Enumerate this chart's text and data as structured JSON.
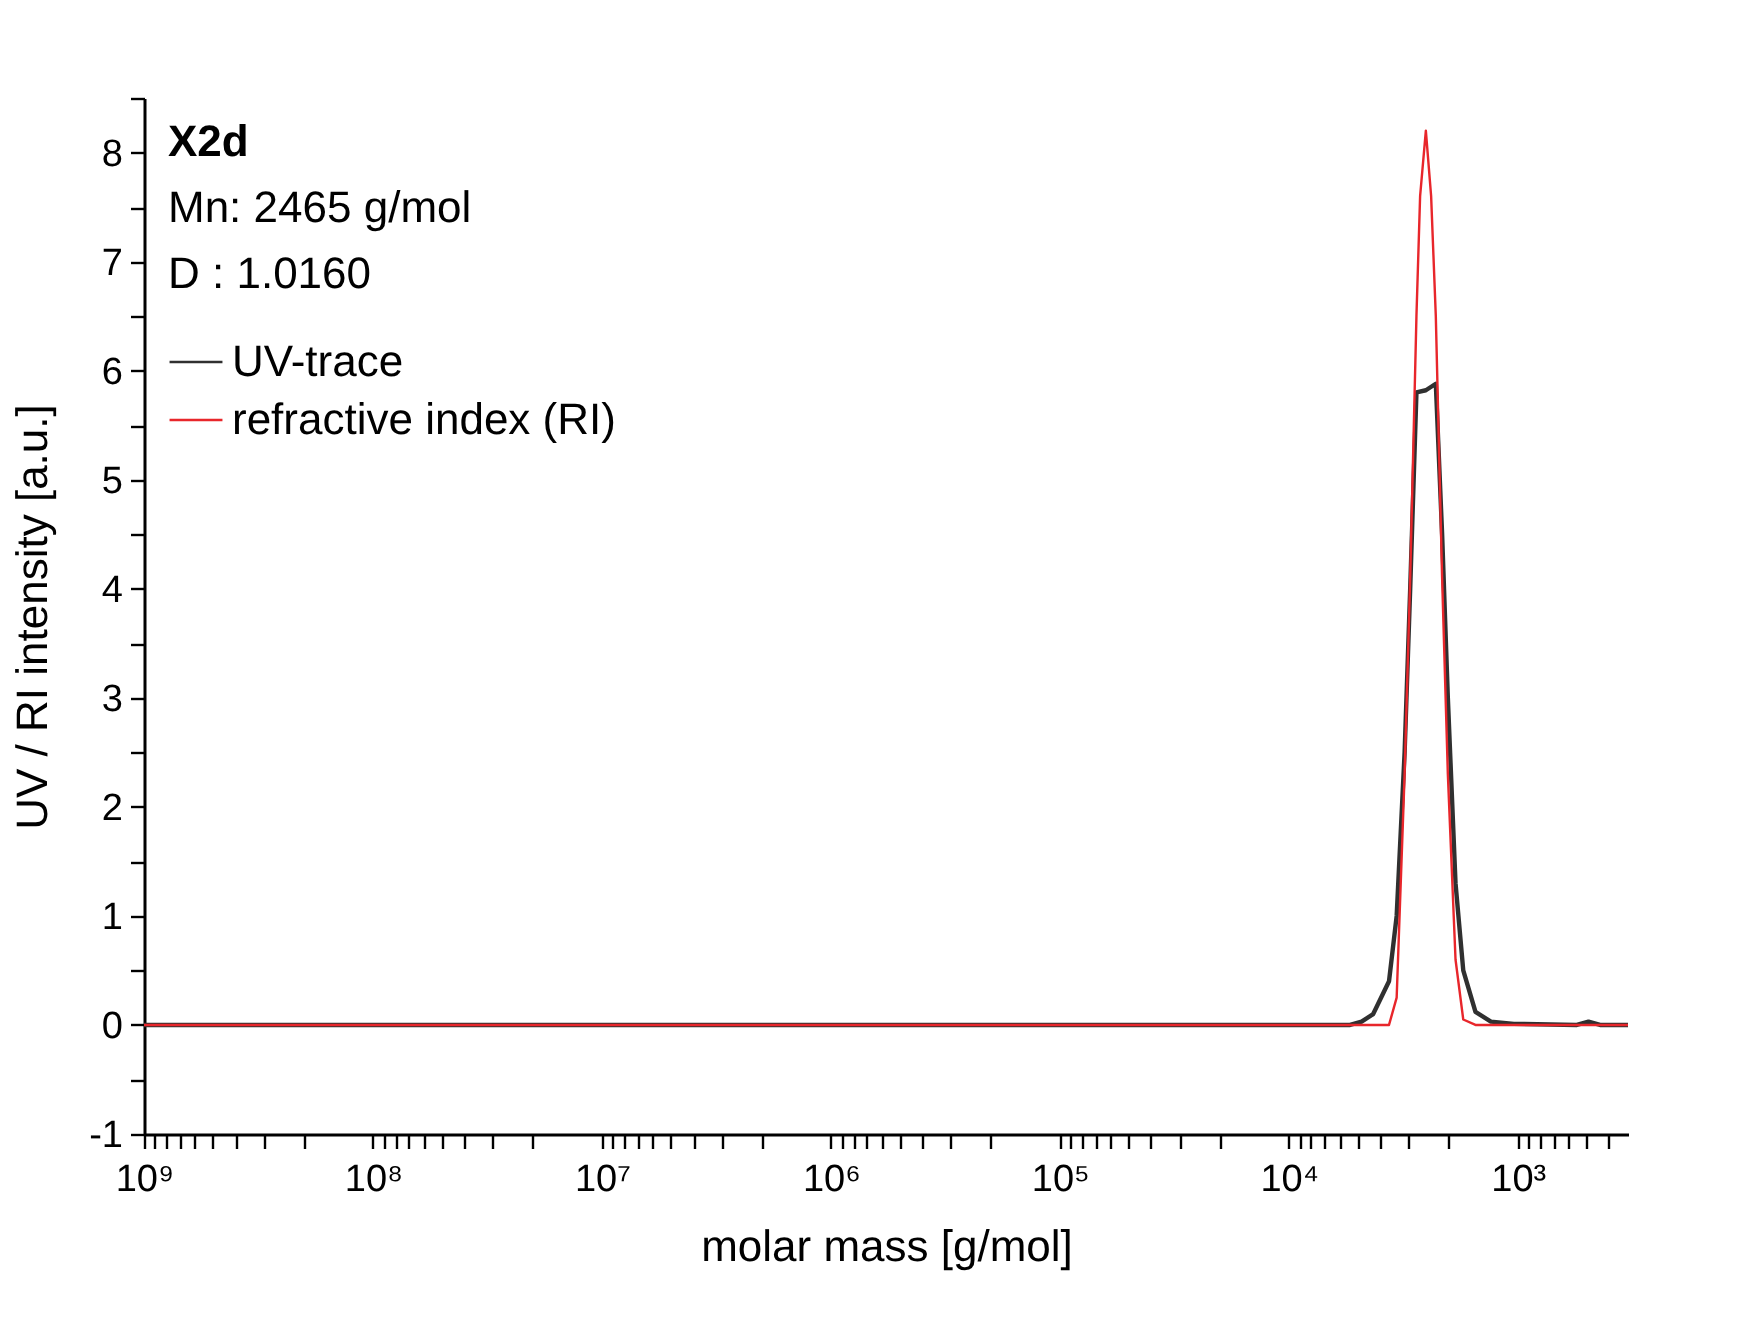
{
  "chart_data": {
    "type": "line",
    "xlabel": "molar mass [g/mol]",
    "ylabel": "UV / RI intensity [a.u.]",
    "annotations": [
      "X2d",
      "Mn: 2465 g/mol",
      "D  : 1.0160"
    ],
    "series": [
      {
        "name": "UV-trace",
        "color": "#303030",
        "x": [
          1000000000,
          5400,
          4810,
          4280,
          3650,
          3380,
          3120,
          2950,
          2770,
          2520,
          2280,
          2140,
          2020,
          1870,
          1730,
          1530,
          1310,
          1040,
          552,
          491,
          437,
          330
        ],
        "values": [
          0,
          0,
          0.03,
          0.1,
          0.4,
          1.0,
          2.5,
          4.0,
          5.8,
          5.82,
          5.88,
          4.5,
          3.0,
          1.3,
          0.5,
          0.12,
          0.03,
          0.01,
          0,
          0.03,
          0,
          0
        ]
      },
      {
        "name": "refractive index (RI)",
        "color": "#e8262b",
        "x": [
          1000000000,
          3650,
          3380,
          3120,
          2950,
          2770,
          2670,
          2520,
          2390,
          2280,
          2140,
          2020,
          1870,
          1730,
          1530,
          330
        ],
        "values": [
          0,
          0,
          0.25,
          2.3,
          4.1,
          6.5,
          7.6,
          8.2,
          7.6,
          6.5,
          4.1,
          2.3,
          0.6,
          0.05,
          0,
          0
        ]
      }
    ],
    "log": "x",
    "xlim": [
      1000000000,
      330
    ],
    "ylim": [
      -1,
      8.5
    ],
    "xticks": [
      {
        "value": 1000000000,
        "label": "10⁹"
      },
      {
        "value": 100000000,
        "label": "10⁸"
      },
      {
        "value": 10000000,
        "label": "10⁷"
      },
      {
        "value": 1000000,
        "label": "10⁶"
      },
      {
        "value": 100000,
        "label": "10⁵"
      },
      {
        "value": 10000,
        "label": "10⁴"
      },
      {
        "value": 1000,
        "label": "10³"
      },
      {
        "value": 900000000,
        "label": null
      },
      {
        "value": 800000000,
        "label": null
      },
      {
        "value": 700000000,
        "label": null
      },
      {
        "value": 600000000,
        "label": null
      },
      {
        "value": 500000000,
        "label": null
      },
      {
        "value": 400000000,
        "label": null
      },
      {
        "value": 300000000,
        "label": null
      },
      {
        "value": 200000000,
        "label": null
      },
      {
        "value": 90000000,
        "label": null
      },
      {
        "value": 80000000,
        "label": null
      },
      {
        "value": 70000000,
        "label": null
      },
      {
        "value": 60000000,
        "label": null
      },
      {
        "value": 50000000,
        "label": null
      },
      {
        "value": 40000000,
        "label": null
      },
      {
        "value": 30000000,
        "label": null
      },
      {
        "value": 20000000,
        "label": null
      },
      {
        "value": 9000000,
        "label": null
      },
      {
        "value": 8000000,
        "label": null
      },
      {
        "value": 7000000,
        "label": null
      },
      {
        "value": 6000000,
        "label": null
      },
      {
        "value": 5000000,
        "label": null
      },
      {
        "value": 4000000,
        "label": null
      },
      {
        "value": 3000000,
        "label": null
      },
      {
        "value": 2000000,
        "label": null
      },
      {
        "value": 900000,
        "label": null
      },
      {
        "value": 800000,
        "label": null
      },
      {
        "value": 700000,
        "label": null
      },
      {
        "value": 600000,
        "label": null
      },
      {
        "value": 500000,
        "label": null
      },
      {
        "value": 400000,
        "label": null
      },
      {
        "value": 300000,
        "label": null
      },
      {
        "value": 200000,
        "label": null
      },
      {
        "value": 90000,
        "label": null
      },
      {
        "value": 80000,
        "label": null
      },
      {
        "value": 70000,
        "label": null
      },
      {
        "value": 60000,
        "label": null
      },
      {
        "value": 50000,
        "label": null
      },
      {
        "value": 40000,
        "label": null
      },
      {
        "value": 30000,
        "label": null
      },
      {
        "value": 20000,
        "label": null
      },
      {
        "value": 9000,
        "label": null
      },
      {
        "value": 8000,
        "label": null
      },
      {
        "value": 7000,
        "label": null
      },
      {
        "value": 6000,
        "label": null
      },
      {
        "value": 5000,
        "label": null
      },
      {
        "value": 4000,
        "label": null
      },
      {
        "value": 3000,
        "label": null
      },
      {
        "value": 2000,
        "label": null
      },
      {
        "value": 900,
        "label": null
      },
      {
        "value": 800,
        "label": null
      },
      {
        "value": 700,
        "label": null
      },
      {
        "value": 600,
        "label": null
      },
      {
        "value": 500,
        "label": null
      },
      {
        "value": 400,
        "label": null
      }
    ],
    "yticks": [
      -1,
      0,
      1,
      2,
      3,
      4,
      5,
      6,
      7,
      8,
      {
        "value": -0.5,
        "label": null
      },
      {
        "value": 0.5,
        "label": null
      },
      {
        "value": 1.5,
        "label": null
      },
      {
        "value": 2.5,
        "label": null
      },
      {
        "value": 3.5,
        "label": null
      },
      {
        "value": 4.5,
        "label": null
      },
      {
        "value": 5.5,
        "label": null
      },
      {
        "value": 6.5,
        "label": null
      },
      {
        "value": 7.5,
        "label": null
      },
      {
        "value": 8.5,
        "label": null
      }
    ],
    "grid": false,
    "legend": "top left",
    "line_style": "solid",
    "marker": "none"
  }
}
